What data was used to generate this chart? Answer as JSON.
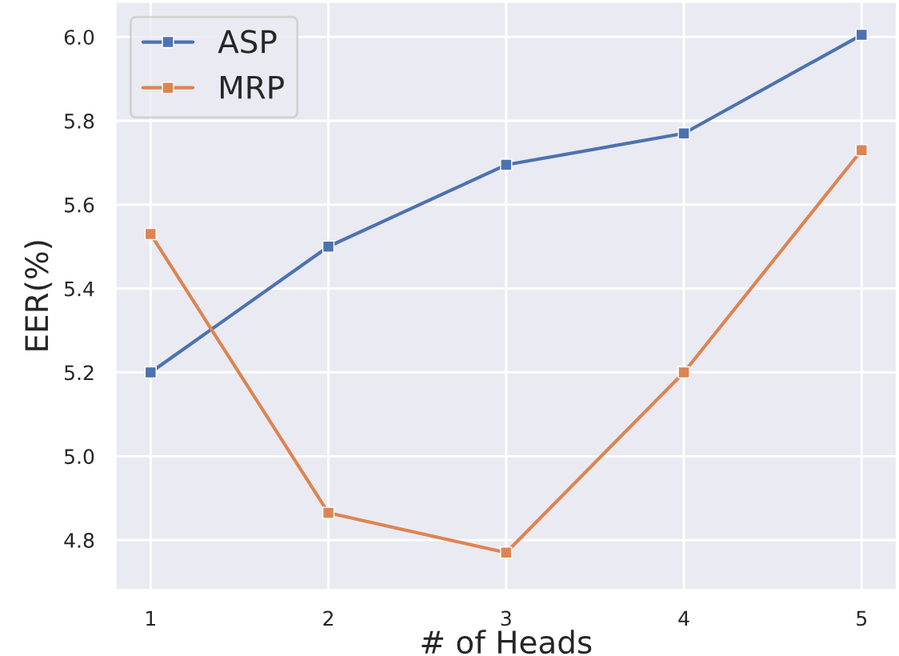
{
  "chart_data": {
    "type": "line",
    "xlabel": "# of Heads",
    "ylabel": "EER(%)",
    "x": [
      1,
      2,
      3,
      4,
      5
    ],
    "series": [
      {
        "name": "ASP",
        "color": "#4c72b0",
        "values": [
          5.2,
          5.5,
          5.695,
          5.77,
          6.005
        ]
      },
      {
        "name": "MRP",
        "color": "#dd8452",
        "values": [
          5.53,
          4.865,
          4.77,
          5.2,
          5.73
        ]
      }
    ],
    "xlim": [
      0.8,
      5.2
    ],
    "ylim": [
      4.68,
      6.085
    ],
    "xticks": [
      1,
      2,
      3,
      4,
      5
    ],
    "yticks": [
      4.8,
      {
        "value": 5.0,
        "label": "5.0"
      },
      5.2,
      5.4,
      5.6,
      5.8,
      {
        "value": 6.0,
        "label": "6.0"
      }
    ],
    "grid": true,
    "legend": "top left",
    "marker": "square",
    "line_style": "solid"
  }
}
